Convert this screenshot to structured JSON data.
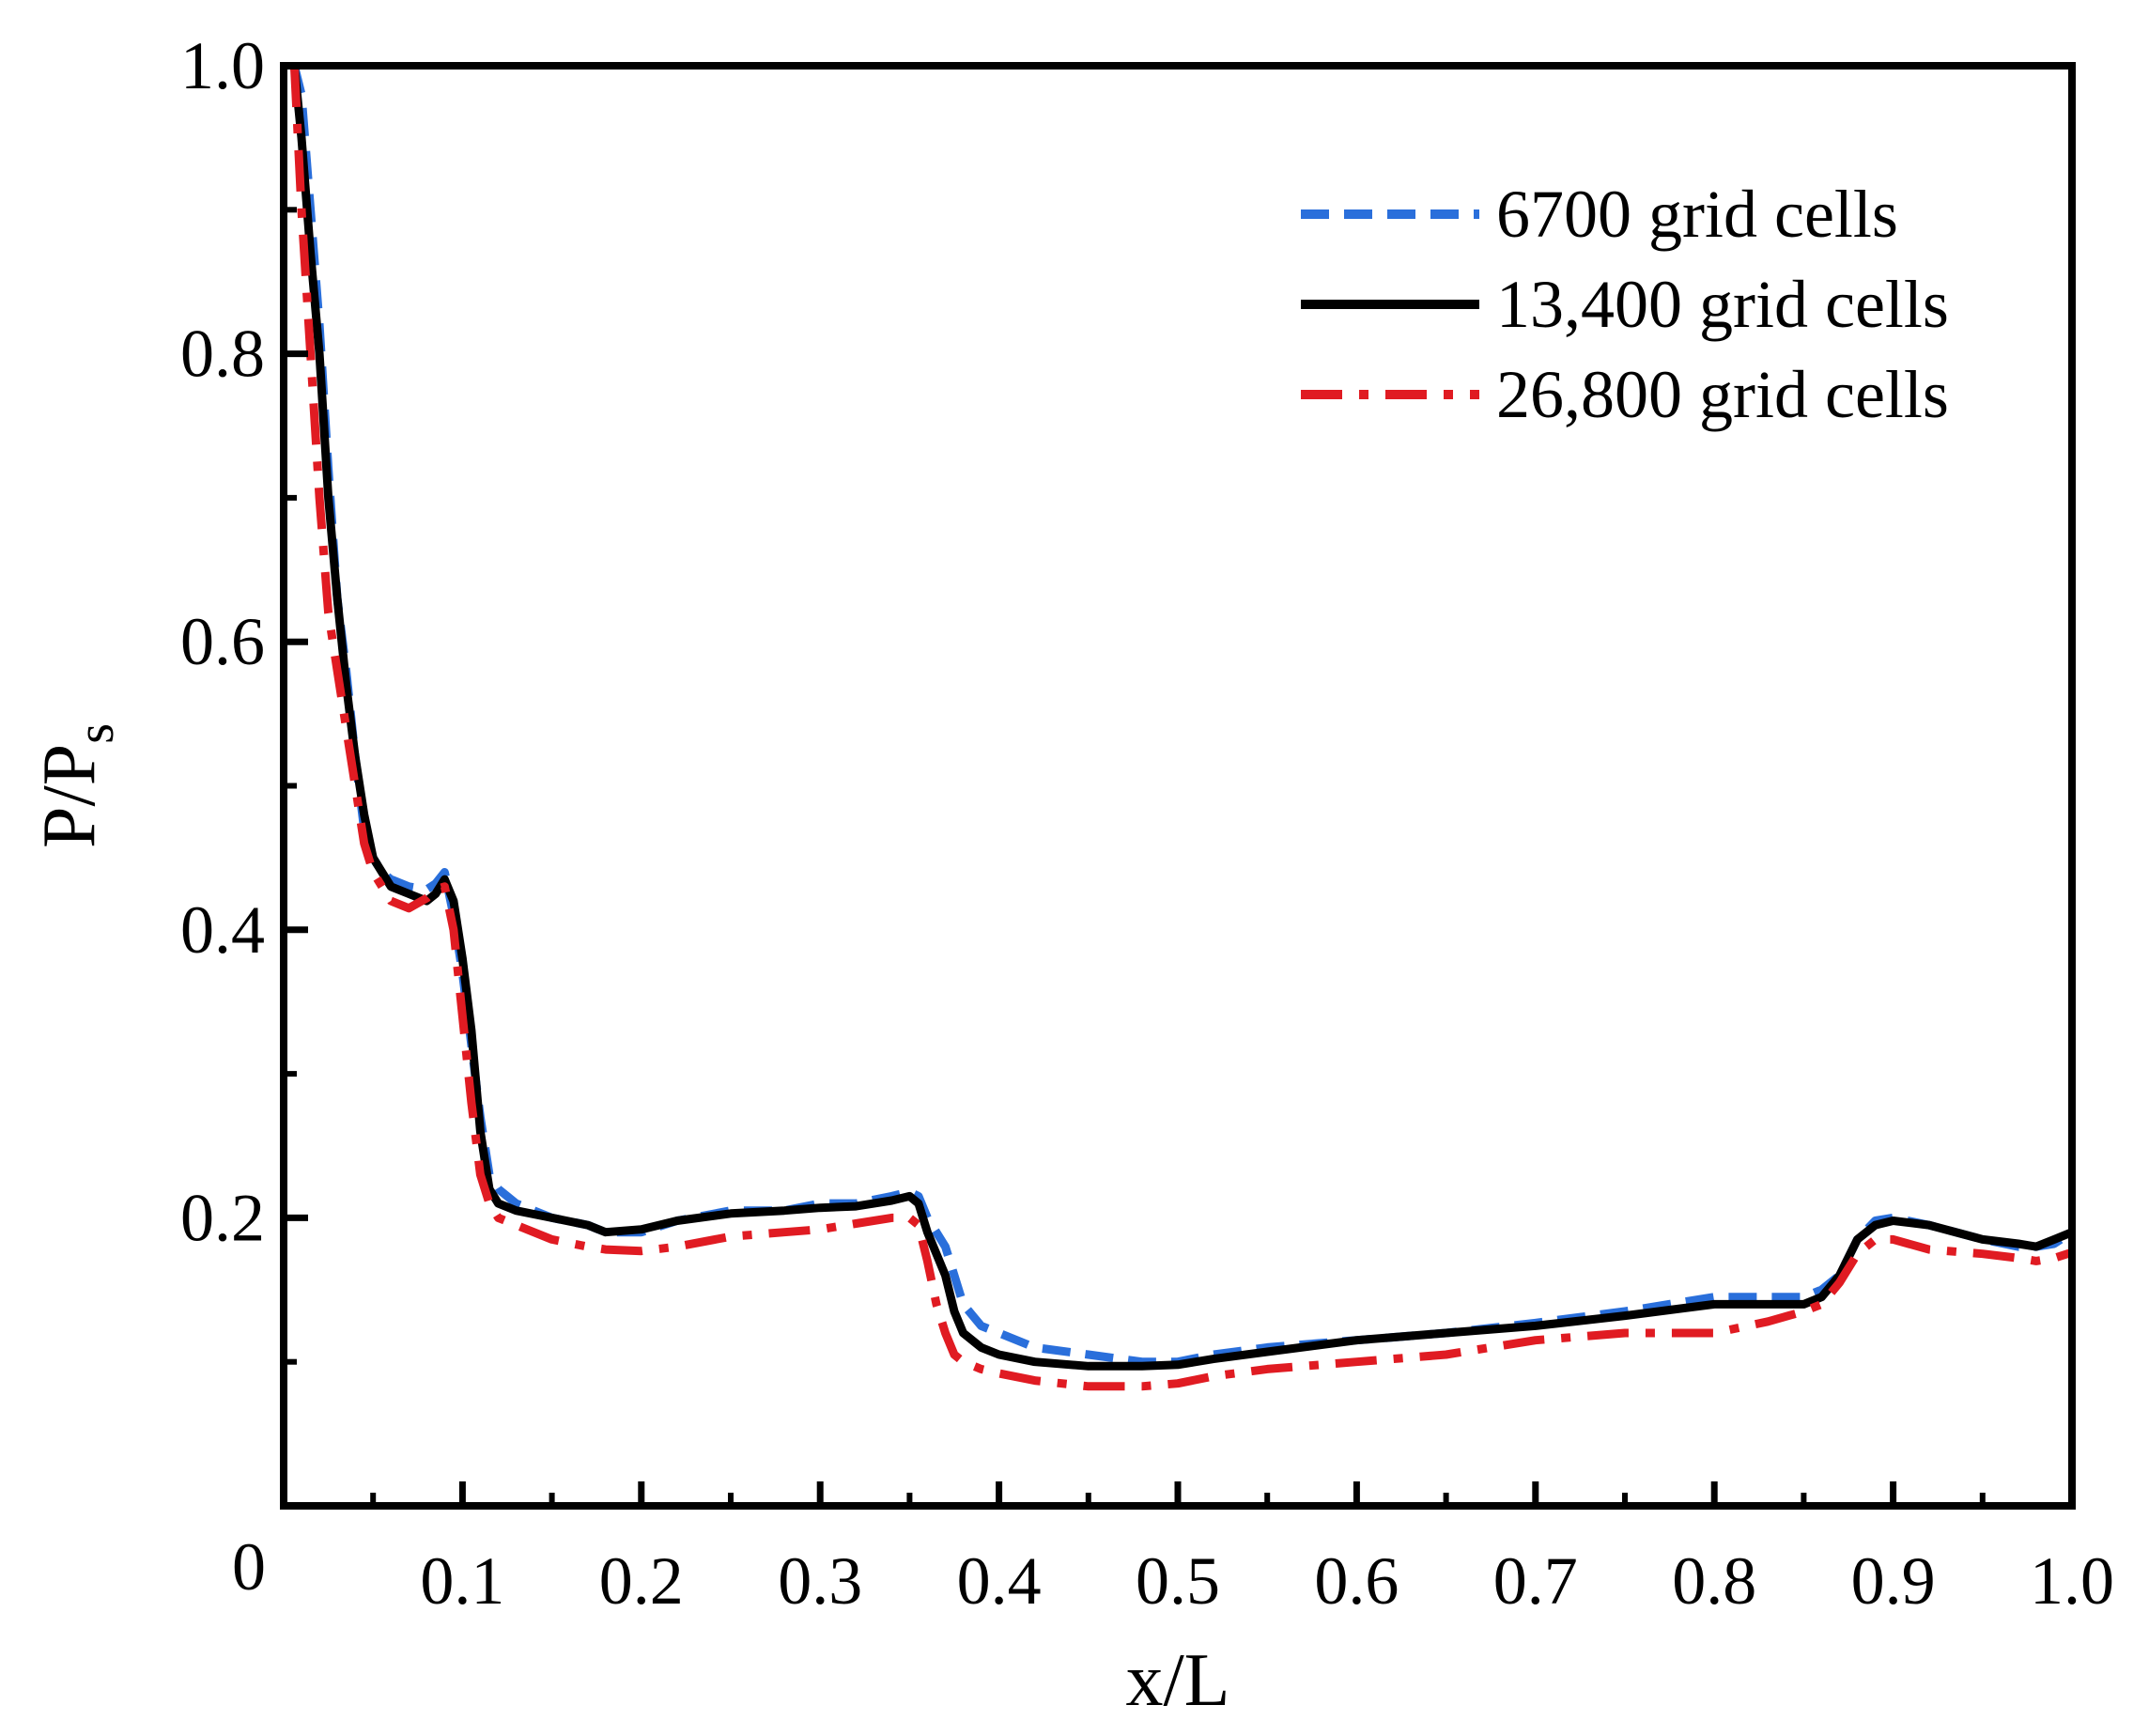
{
  "chart_data": {
    "type": "line",
    "title": "",
    "xlabel": "x/L",
    "ylabel": {
      "main": "P/P",
      "sub": "s"
    },
    "xlim": [
      0,
      1.0
    ],
    "ylim": [
      0,
      1.0
    ],
    "origin_label": "0",
    "xticks": [
      {
        "value": 0.1,
        "label": "0.1"
      },
      {
        "value": 0.2,
        "label": "0.2"
      },
      {
        "value": 0.3,
        "label": "0.3"
      },
      {
        "value": 0.4,
        "label": "0.4"
      },
      {
        "value": 0.5,
        "label": "0.5"
      },
      {
        "value": 0.6,
        "label": "0.6"
      },
      {
        "value": 0.7,
        "label": "0.7"
      },
      {
        "value": 0.8,
        "label": "0.8"
      },
      {
        "value": 0.9,
        "label": "0.9"
      },
      {
        "value": 1.0,
        "label": "1.0"
      }
    ],
    "xminor": [
      0.05,
      0.15,
      0.25,
      0.35,
      0.45,
      0.55,
      0.65,
      0.75,
      0.85,
      0.95
    ],
    "yticks": [
      {
        "value": 0.2,
        "label": "0.2"
      },
      {
        "value": 0.4,
        "label": "0.4"
      },
      {
        "value": 0.6,
        "label": "0.6"
      },
      {
        "value": 0.8,
        "label": "0.8"
      },
      {
        "value": 1.0,
        "label": "1.0"
      }
    ],
    "yminor": [
      0.1,
      0.3,
      0.5,
      0.7,
      0.9
    ],
    "grid": false,
    "legend_position": "top-right",
    "series": [
      {
        "name": "6700 grid cells",
        "color": "#2a6fdb",
        "style": "dashed",
        "x": [
          0.006,
          0.01,
          0.015,
          0.02,
          0.025,
          0.03,
          0.035,
          0.04,
          0.045,
          0.05,
          0.055,
          0.06,
          0.07,
          0.08,
          0.085,
          0.09,
          0.095,
          0.1,
          0.105,
          0.11,
          0.115,
          0.12,
          0.13,
          0.15,
          0.17,
          0.18,
          0.2,
          0.22,
          0.25,
          0.28,
          0.3,
          0.32,
          0.34,
          0.35,
          0.355,
          0.36,
          0.37,
          0.375,
          0.38,
          0.39,
          0.4,
          0.42,
          0.45,
          0.48,
          0.5,
          0.52,
          0.55,
          0.6,
          0.65,
          0.7,
          0.75,
          0.8,
          0.83,
          0.85,
          0.86,
          0.87,
          0.88,
          0.89,
          0.9,
          0.92,
          0.95,
          0.97,
          0.98,
          0.99,
          1.0
        ],
        "y": [
          1.0,
          0.98,
          0.9,
          0.82,
          0.72,
          0.63,
          0.58,
          0.52,
          0.47,
          0.45,
          0.44,
          0.435,
          0.43,
          0.428,
          0.432,
          0.44,
          0.41,
          0.37,
          0.32,
          0.27,
          0.23,
          0.22,
          0.21,
          0.2,
          0.195,
          0.19,
          0.19,
          0.198,
          0.205,
          0.205,
          0.21,
          0.21,
          0.215,
          0.218,
          0.215,
          0.2,
          0.18,
          0.16,
          0.14,
          0.125,
          0.12,
          0.11,
          0.105,
          0.1,
          0.1,
          0.105,
          0.11,
          0.115,
          0.12,
          0.127,
          0.135,
          0.145,
          0.145,
          0.145,
          0.15,
          0.16,
          0.185,
          0.198,
          0.2,
          0.195,
          0.185,
          0.18,
          0.18,
          0.182,
          0.19
        ]
      },
      {
        "name": "13,400 grid cells",
        "color": "#000000",
        "style": "solid",
        "x": [
          0.006,
          0.01,
          0.015,
          0.02,
          0.025,
          0.03,
          0.035,
          0.04,
          0.045,
          0.05,
          0.055,
          0.06,
          0.07,
          0.08,
          0.085,
          0.09,
          0.095,
          0.1,
          0.105,
          0.11,
          0.115,
          0.12,
          0.13,
          0.15,
          0.17,
          0.18,
          0.2,
          0.22,
          0.25,
          0.28,
          0.3,
          0.32,
          0.34,
          0.35,
          0.355,
          0.36,
          0.37,
          0.375,
          0.38,
          0.39,
          0.4,
          0.42,
          0.45,
          0.48,
          0.5,
          0.52,
          0.55,
          0.6,
          0.65,
          0.7,
          0.75,
          0.8,
          0.83,
          0.85,
          0.86,
          0.87,
          0.88,
          0.89,
          0.9,
          0.92,
          0.95,
          0.97,
          0.98,
          0.99,
          1.0
        ],
        "y": [
          1.0,
          0.95,
          0.87,
          0.8,
          0.7,
          0.63,
          0.57,
          0.52,
          0.48,
          0.45,
          0.44,
          0.43,
          0.425,
          0.42,
          0.425,
          0.435,
          0.42,
          0.38,
          0.33,
          0.26,
          0.22,
          0.21,
          0.205,
          0.2,
          0.195,
          0.19,
          0.192,
          0.198,
          0.203,
          0.205,
          0.207,
          0.208,
          0.212,
          0.215,
          0.21,
          0.19,
          0.16,
          0.135,
          0.12,
          0.11,
          0.105,
          0.1,
          0.097,
          0.097,
          0.098,
          0.102,
          0.107,
          0.115,
          0.12,
          0.125,
          0.132,
          0.14,
          0.14,
          0.14,
          0.145,
          0.16,
          0.185,
          0.195,
          0.198,
          0.195,
          0.185,
          0.182,
          0.18,
          0.185,
          0.19
        ]
      },
      {
        "name": "26,800 grid cells",
        "color": "#e01b22",
        "style": "dashdot",
        "x": [
          0.006,
          0.01,
          0.015,
          0.02,
          0.025,
          0.03,
          0.035,
          0.04,
          0.045,
          0.05,
          0.055,
          0.06,
          0.07,
          0.08,
          0.085,
          0.09,
          0.095,
          0.1,
          0.105,
          0.11,
          0.115,
          0.12,
          0.13,
          0.15,
          0.17,
          0.18,
          0.2,
          0.22,
          0.25,
          0.28,
          0.3,
          0.32,
          0.34,
          0.35,
          0.355,
          0.36,
          0.365,
          0.37,
          0.375,
          0.38,
          0.39,
          0.4,
          0.42,
          0.45,
          0.48,
          0.5,
          0.52,
          0.55,
          0.6,
          0.65,
          0.7,
          0.75,
          0.8,
          0.83,
          0.85,
          0.86,
          0.87,
          0.88,
          0.89,
          0.9,
          0.92,
          0.95,
          0.97,
          0.98,
          0.99,
          1.0
        ],
        "y": [
          1.0,
          0.9,
          0.8,
          0.7,
          0.62,
          0.58,
          0.54,
          0.5,
          0.46,
          0.44,
          0.43,
          0.42,
          0.415,
          0.422,
          0.428,
          0.43,
          0.4,
          0.34,
          0.28,
          0.23,
          0.21,
          0.2,
          0.195,
          0.185,
          0.18,
          0.178,
          0.177,
          0.18,
          0.187,
          0.19,
          0.192,
          0.196,
          0.2,
          0.2,
          0.195,
          0.17,
          0.14,
          0.12,
          0.105,
          0.1,
          0.095,
          0.092,
          0.087,
          0.083,
          0.083,
          0.085,
          0.09,
          0.095,
          0.1,
          0.105,
          0.115,
          0.12,
          0.12,
          0.128,
          0.135,
          0.14,
          0.155,
          0.175,
          0.185,
          0.185,
          0.178,
          0.175,
          0.172,
          0.17,
          0.172,
          0.176
        ]
      }
    ]
  }
}
